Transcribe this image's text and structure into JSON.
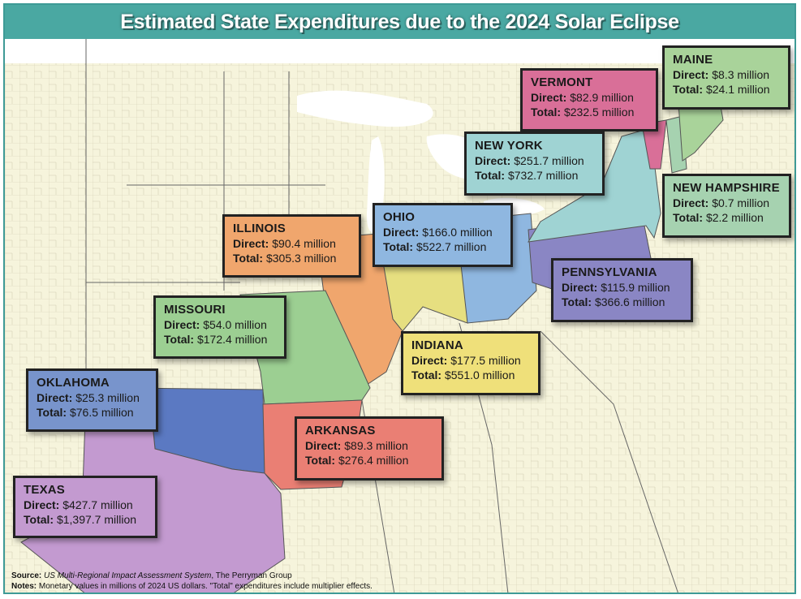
{
  "title": "Estimated State Expenditures due to the 2024 Solar Eclipse",
  "labels": {
    "direct": "Direct:",
    "total": "Total:"
  },
  "states": [
    {
      "id": "maine",
      "name": "MAINE",
      "direct": "$8.3 million",
      "total": "$24.1 million",
      "color": "#a9d39a"
    },
    {
      "id": "vermont",
      "name": "VERMONT",
      "direct": "$82.9 million",
      "total": "$232.5 million",
      "color": "#d96f98"
    },
    {
      "id": "new-york",
      "name": "NEW YORK",
      "direct": "$251.7 million",
      "total": "$732.7 million",
      "color": "#9fd3d3"
    },
    {
      "id": "new-hampshire",
      "name": "NEW HAMPSHIRE",
      "direct": "$0.7 million",
      "total": "$2.2 million",
      "color": "#a6d2b0"
    },
    {
      "id": "illinois",
      "name": "ILLINOIS",
      "direct": "$90.4 million",
      "total": "$305.3 million",
      "color": "#f0a66d"
    },
    {
      "id": "ohio",
      "name": "OHIO",
      "direct": "$166.0 million",
      "total": "$522.7 million",
      "color": "#8fb7e0"
    },
    {
      "id": "pennsylvania",
      "name": "PENNSYLVANIA",
      "direct": "$115.9 million",
      "total": "$366.6 million",
      "color": "#8a86c4"
    },
    {
      "id": "missouri",
      "name": "MISSOURI",
      "direct": "$54.0 million",
      "total": "$172.4 million",
      "color": "#9ccf92"
    },
    {
      "id": "indiana",
      "name": "INDIANA",
      "direct": "$177.5 million",
      "total": "$551.0 million",
      "color": "#efe07a"
    },
    {
      "id": "oklahoma",
      "name": "OKLAHOMA",
      "direct": "$25.3 million",
      "total": "$76.5 million",
      "color": "#7894cc"
    },
    {
      "id": "arkansas",
      "name": "ARKANSAS",
      "direct": "$89.3 million",
      "total": "$276.4 million",
      "color": "#ea7f74"
    },
    {
      "id": "texas",
      "name": "TEXAS",
      "direct": "$427.7 million",
      "total": "$1,397.7 million",
      "color": "#c39ad0"
    }
  ],
  "footer": {
    "source_label": "Source:",
    "source_italic": "US Multi-Regional Impact Assessment System",
    "source_rest": ", The Perryman Group",
    "notes_label": "Notes:",
    "notes_text": "Monetary values in millions of 2024 US dollars. \"Total\" expenditures include multiplier effects."
  }
}
